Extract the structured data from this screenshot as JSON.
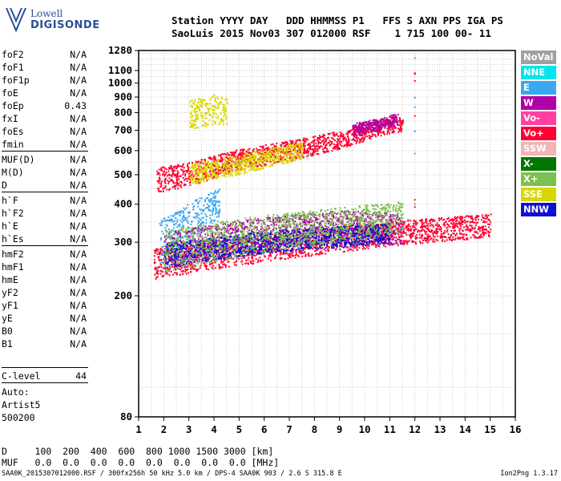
{
  "logo": {
    "line1": "Lowell",
    "line2": "DIGISONDE"
  },
  "header": {
    "line1": "Station YYYY DAY   DDD HHMMSS P1   FFS S AXN PPS IGA PS",
    "line2": "SaoLuis 2015 Nov03 307 012000 RSF    1 715 100 00- 11"
  },
  "params": {
    "group1": [
      {
        "name": "foF2",
        "value": "N/A"
      },
      {
        "name": "foF1",
        "value": "N/A"
      },
      {
        "name": "foF1p",
        "value": "N/A"
      },
      {
        "name": "foE",
        "value": "N/A"
      },
      {
        "name": "foEp",
        "value": "0.43"
      },
      {
        "name": "fxI",
        "value": "N/A"
      },
      {
        "name": "foEs",
        "value": "N/A"
      },
      {
        "name": "fmin",
        "value": "N/A"
      }
    ],
    "group2": [
      {
        "name": "MUF(D)",
        "value": "N/A"
      },
      {
        "name": "M(D)",
        "value": "N/A"
      },
      {
        "name": "D",
        "value": "N/A"
      }
    ],
    "group3": [
      {
        "name": "h`F",
        "value": "N/A"
      },
      {
        "name": "h`F2",
        "value": "N/A"
      },
      {
        "name": "h`E",
        "value": "N/A"
      },
      {
        "name": "h`Es",
        "value": "N/A"
      }
    ],
    "group4": [
      {
        "name": "hmF2",
        "value": "N/A"
      },
      {
        "name": "hmF1",
        "value": "N/A"
      },
      {
        "name": "hmE",
        "value": "N/A"
      },
      {
        "name": "yF2",
        "value": "N/A"
      },
      {
        "name": "yF1",
        "value": "N/A"
      },
      {
        "name": "yE",
        "value": "N/A"
      },
      {
        "name": "B0",
        "value": "N/A"
      },
      {
        "name": "B1",
        "value": "N/A"
      }
    ],
    "c_level": {
      "name": "C-level",
      "value": "44"
    }
  },
  "auto": {
    "line1": "Auto:",
    "line2": "Artist5",
    "line3": "500200"
  },
  "legend": [
    {
      "label": "NoVal",
      "color": "#a0a0a0"
    },
    {
      "label": "NNE",
      "color": "#00e5ee"
    },
    {
      "label": "E",
      "color": "#3aa8f0"
    },
    {
      "label": "W",
      "color": "#b000a8"
    },
    {
      "label": "Vo-",
      "color": "#ff40a0"
    },
    {
      "label": "Vo+",
      "color": "#ff0030"
    },
    {
      "label": "SSW",
      "color": "#f2b4b4"
    },
    {
      "label": "X-",
      "color": "#007800"
    },
    {
      "label": "X+",
      "color": "#7cc050"
    },
    {
      "label": "SSE",
      "color": "#d8d800"
    },
    {
      "label": "NNW",
      "color": "#1010d0"
    }
  ],
  "bottom": {
    "d_line": "D     100  200  400  600  800 1000 1500 3000 [km]",
    "muf_line": "MUF   0.0  0.0  0.0  0.0  0.0  0.0  0.0  0.0 [MHz]"
  },
  "footer": "SAA0K_2015307012000.RSF / 300fx256h 50 kHz 5.0 km / DPS-4 SAA0K 903 / 2.6 S 315.8 E",
  "version": "Ion2Png 1.3.17",
  "chart_data": {
    "type": "scatter",
    "xlim": [
      1,
      16
    ],
    "ylim_log": [
      80,
      1280
    ],
    "x_ticks": [
      1,
      2,
      3,
      4,
      5,
      6,
      7,
      8,
      9,
      10,
      11,
      12,
      13,
      14,
      15,
      16
    ],
    "y_ticks": [
      80,
      200,
      300,
      400,
      500,
      600,
      700,
      800,
      900,
      1000,
      1100,
      1280
    ],
    "grid": true,
    "legend_placement": "right",
    "clusters": [
      {
        "label": "Vo+",
        "x_range": [
          1.6,
          15
        ],
        "y_trace": [
          [
            1.6,
            255
          ],
          [
            5,
            280
          ],
          [
            8,
            300
          ],
          [
            11,
            320
          ],
          [
            15,
            340
          ]
        ],
        "spread": 30
      },
      {
        "label": "Vo+",
        "x_range": [
          1.7,
          11.5
        ],
        "y_trace": [
          [
            1.7,
            480
          ],
          [
            3,
            500
          ],
          [
            5,
            560
          ],
          [
            7,
            600
          ],
          [
            9,
            650
          ],
          [
            11,
            730
          ]
        ],
        "spread": 45
      },
      {
        "label": "SSE",
        "x_range": [
          3,
          4.5
        ],
        "y_trace": [
          [
            3,
            780
          ],
          [
            4,
            820
          ],
          [
            4.5,
            800
          ]
        ],
        "spread": 90
      },
      {
        "label": "SSE",
        "x_range": [
          3,
          7.5
        ],
        "y_trace": [
          [
            3,
            500
          ],
          [
            5,
            540
          ],
          [
            7.5,
            600
          ]
        ],
        "spread": 40
      },
      {
        "label": "E",
        "x_range": [
          1.8,
          4.2
        ],
        "y_trace": [
          [
            1.8,
            300
          ],
          [
            3,
            350
          ],
          [
            4.2,
            400
          ]
        ],
        "spread": 50
      },
      {
        "label": "W",
        "x_range": [
          2,
          11.5
        ],
        "y_trace": [
          [
            2,
            280
          ],
          [
            6,
            320
          ],
          [
            9,
            340
          ],
          [
            11.5,
            330
          ]
        ],
        "spread": 40
      },
      {
        "label": "NNW",
        "x_range": [
          2,
          11
        ],
        "y_trace": [
          [
            2,
            270
          ],
          [
            6,
            300
          ],
          [
            11,
            320
          ]
        ],
        "spread": 25
      },
      {
        "label": "X+",
        "x_range": [
          2,
          11.5
        ],
        "y_trace": [
          [
            2,
            280
          ],
          [
            6,
            320
          ],
          [
            11.5,
            360
          ]
        ],
        "spread": 45
      },
      {
        "label": "W",
        "x_range": [
          9.5,
          11.3
        ],
        "y_trace": [
          [
            9.5,
            700
          ],
          [
            10.5,
            730
          ],
          [
            11.3,
            760
          ]
        ],
        "spread": 35
      }
    ]
  }
}
